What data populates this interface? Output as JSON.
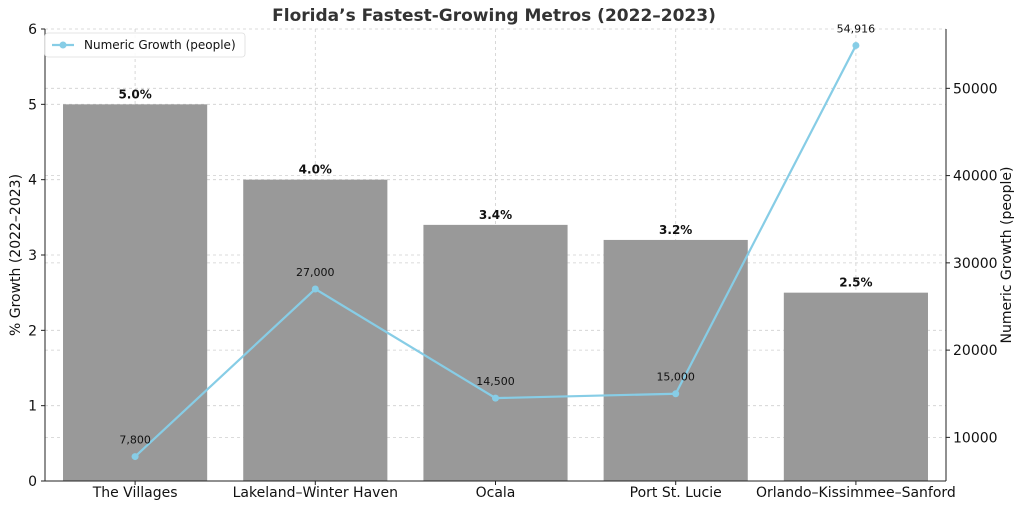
{
  "chart_data": {
    "type": "bar",
    "title": "Florida’s Fastest-Growing Metros (2022–2023)",
    "categories": [
      "The Villages",
      "Lakeland–Winter Haven",
      "Ocala",
      "Port St. Lucie",
      "Orlando–Kissimmee–Sanford"
    ],
    "bar_series": {
      "values": [
        5.0,
        4.0,
        3.4,
        3.2,
        2.5
      ],
      "labels": [
        "5.0%",
        "4.0%",
        "3.4%",
        "3.2%",
        "2.5%"
      ],
      "color": "#999999"
    },
    "line_series": {
      "name": "Numeric Growth (people)",
      "values": [
        7800,
        27000,
        14500,
        15000,
        54916
      ],
      "labels": [
        "7,800",
        "27,000",
        "14,500",
        "15,000",
        "54,916"
      ],
      "color": "#87cde6"
    },
    "ylabel_left": "% Growth (2022–2023)",
    "ylabel_right": "Numeric Growth (people)",
    "ylim_left": [
      0,
      6
    ],
    "yticks_left": [
      "0",
      "1",
      "2",
      "3",
      "4",
      "5",
      "6"
    ],
    "ylim_right": [
      5000,
      56800
    ],
    "yticks_right_values": [
      10000,
      20000,
      30000,
      40000,
      50000
    ],
    "yticks_right": [
      "10000",
      "20000",
      "30000",
      "40000",
      "50000"
    ],
    "grid": true,
    "legend_position": "top-left"
  }
}
